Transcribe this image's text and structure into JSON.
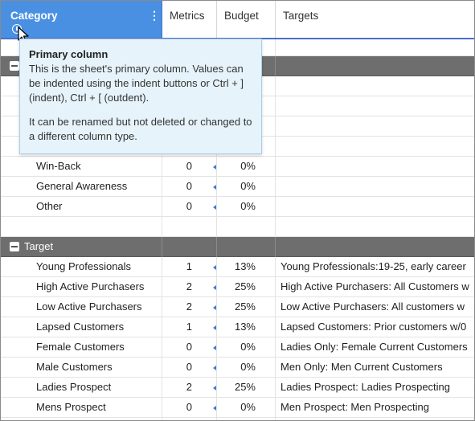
{
  "header": {
    "columns": [
      "Category",
      "Metrics",
      "Budget",
      "Targets"
    ]
  },
  "tooltip": {
    "title": "Primary column",
    "body1": "This is the sheet's primary column. Values can be indented using the indent buttons or Ctrl + ] (indent), Ctrl + [ (outdent).",
    "body2": "It can be renamed but not deleted or changed to a different column type."
  },
  "upper_rows": [
    {
      "category": "Win-Back",
      "metrics": "0",
      "budget": "0%",
      "targets": ""
    },
    {
      "category": "General Awareness",
      "metrics": "0",
      "budget": "0%",
      "targets": ""
    },
    {
      "category": "Other",
      "metrics": "0",
      "budget": "0%",
      "targets": ""
    }
  ],
  "target_group": {
    "label": "Target",
    "rows": [
      {
        "category": "Young Professionals",
        "metrics": "1",
        "budget": "13%",
        "targets": "Young Professionals:19-25, early career"
      },
      {
        "category": "High Active Purchasers",
        "metrics": "2",
        "budget": "25%",
        "targets": "High Active Purchasers: All Customers w"
      },
      {
        "category": "Low Active Purchasers",
        "metrics": "2",
        "budget": "25%",
        "targets": "Low Active Purchasers: All customers w"
      },
      {
        "category": "Lapsed Customers",
        "metrics": "1",
        "budget": "13%",
        "targets": "Lapsed Customers: Prior customers w/0"
      },
      {
        "category": "Female Customers",
        "metrics": "0",
        "budget": "0%",
        "targets": "Ladies Only: Female Current Customers"
      },
      {
        "category": "Male Customers",
        "metrics": "0",
        "budget": "0%",
        "targets": "Men Only: Men Current Customers"
      },
      {
        "category": "Ladies Prospect",
        "metrics": "2",
        "budget": "25%",
        "targets": "Ladies Prospect: Ladies Prospecting"
      },
      {
        "category": "Mens Prospect",
        "metrics": "0",
        "budget": "0%",
        "targets": "Men Prospect: Men Prospecting"
      }
    ]
  },
  "colors": {
    "primary_header": "#4a90e2",
    "group_row": "#6e6e6e",
    "tooltip_bg": "#e6f3fb",
    "indicator": "#3a7bd5"
  },
  "icons": [
    "kebab-menu-icon",
    "info-icon",
    "mouse-cursor-icon",
    "collapse-minus-icon",
    "row-indicator-icon"
  ]
}
